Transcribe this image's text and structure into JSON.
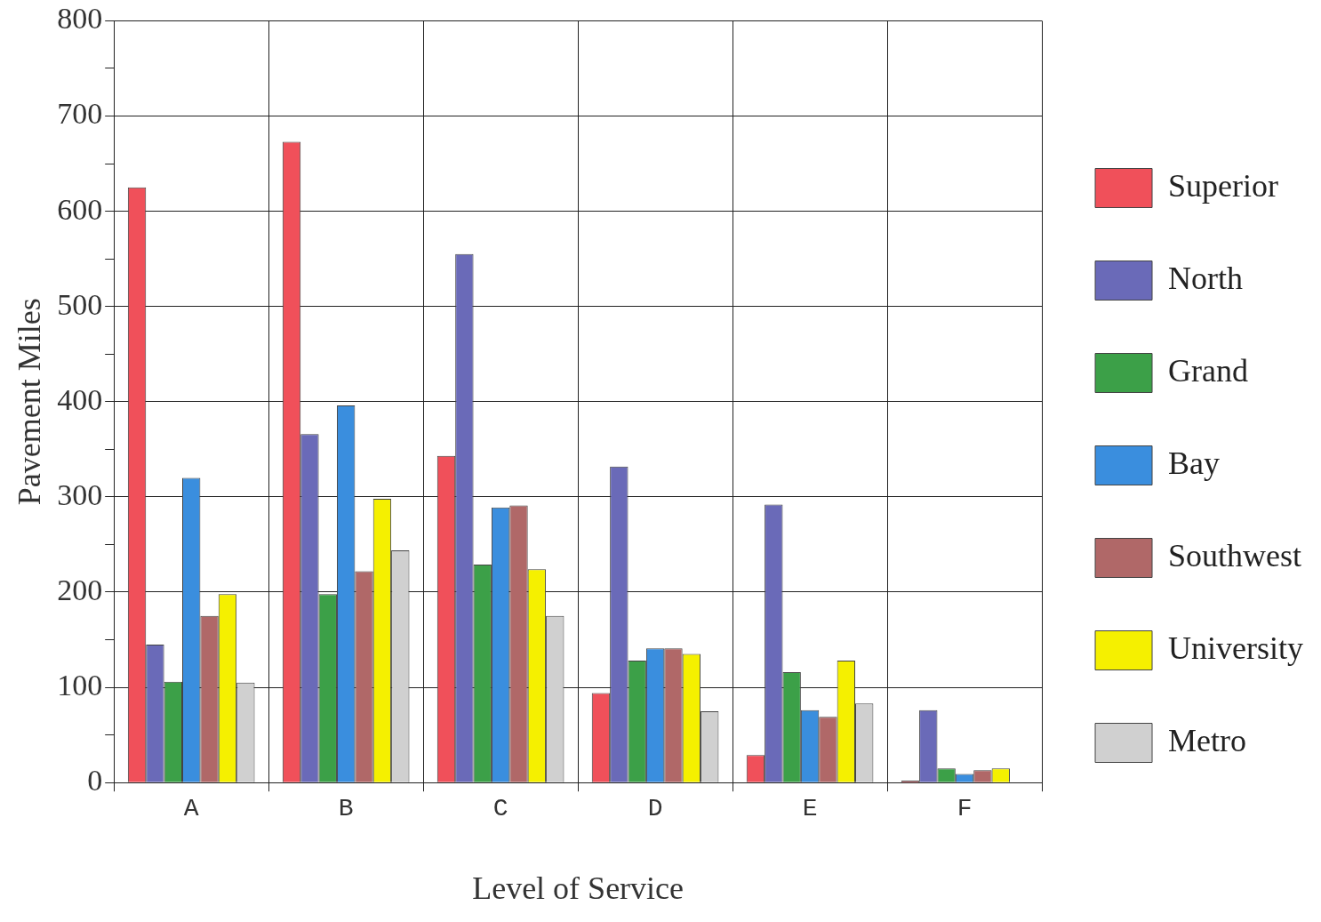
{
  "chart_data": {
    "type": "bar",
    "xlabel": "Level of Service",
    "ylabel": "Pavement Miles",
    "categories": [
      "A",
      "B",
      "C",
      "D",
      "E",
      "F"
    ],
    "series": [
      {
        "name": "Superior",
        "color": "#f0505a",
        "values": [
          625,
          673,
          343,
          94,
          29,
          2
        ]
      },
      {
        "name": "North",
        "color": "#6a6ab8",
        "values": [
          145,
          366,
          555,
          332,
          292,
          76
        ]
      },
      {
        "name": "Grand",
        "color": "#3ca048",
        "values": [
          106,
          198,
          229,
          128,
          116,
          15
        ]
      },
      {
        "name": "Bay",
        "color": "#3a8ede",
        "values": [
          320,
          396,
          289,
          141,
          76,
          9
        ]
      },
      {
        "name": "Southwest",
        "color": "#b06868",
        "values": [
          175,
          222,
          291,
          141,
          69,
          13
        ]
      },
      {
        "name": "University",
        "color": "#f5f000",
        "values": [
          198,
          298,
          224,
          135,
          128,
          15
        ]
      },
      {
        "name": "Metro",
        "color": "#d0d0d0",
        "values": [
          105,
          244,
          175,
          75,
          83,
          0
        ]
      }
    ],
    "ylim": [
      0,
      800
    ],
    "yticks": [
      0,
      {
        "value": 50,
        "label": null
      },
      100,
      {
        "value": 150,
        "label": null
      },
      200,
      {
        "value": 250,
        "label": null
      },
      300,
      {
        "value": 350,
        "label": null
      },
      400,
      {
        "value": 450,
        "label": null
      },
      500,
      {
        "value": 550,
        "label": null
      },
      600,
      {
        "value": 650,
        "label": null
      },
      700,
      {
        "value": 750,
        "label": null
      },
      800
    ],
    "grid": true,
    "legend": "right"
  }
}
